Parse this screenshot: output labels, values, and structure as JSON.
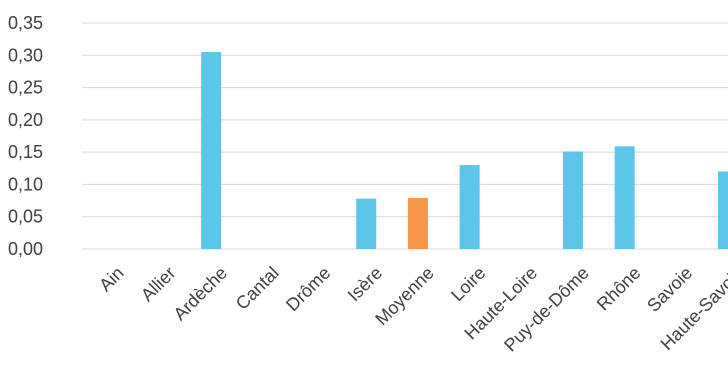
{
  "chart_data": {
    "type": "bar",
    "title": "",
    "xlabel": "",
    "ylabel": "",
    "categories": [
      "Ain",
      "Allier",
      "Ardèche",
      "Cantal",
      "Drôme",
      "Isère",
      "Moyenne",
      "Loire",
      "Haute-Loire",
      "Puy-de-Dôme",
      "Rhône",
      "Savoie",
      "Haute-Savoie"
    ],
    "values": [
      0,
      0,
      0.305,
      0,
      0,
      0.078,
      0.079,
      0.13,
      0,
      0.151,
      0.159,
      0,
      0.12
    ],
    "highlight_category": "Moyenne",
    "ylim": [
      0,
      0.35
    ],
    "yticks": [
      0,
      0.05,
      0.1,
      0.15,
      0.2,
      0.25,
      0.3,
      0.35
    ],
    "ytick_labels": [
      "0,00",
      "0,05",
      "0,10",
      "0,15",
      "0,20",
      "0,25",
      "0,30",
      "0,35"
    ],
    "grid": true,
    "colors": {
      "bar": "#5bc5ea",
      "highlight": "#f79646",
      "grid": "#d9d9d9",
      "text": "#404040"
    }
  }
}
